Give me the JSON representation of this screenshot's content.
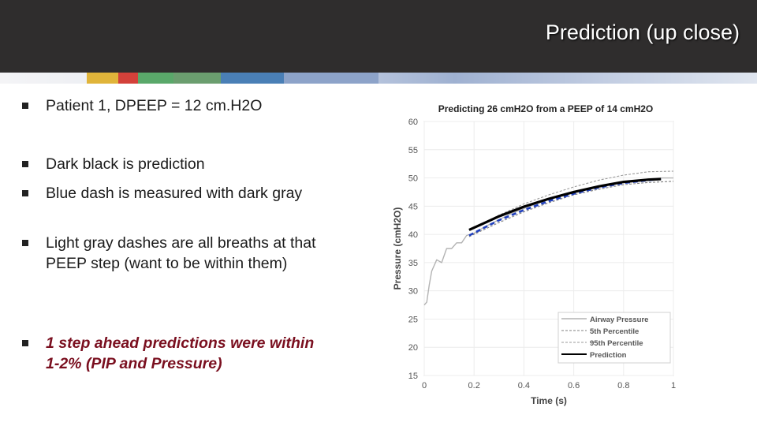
{
  "slide": {
    "title": "Prediction (up close)",
    "bullets": [
      {
        "text": "Patient 1, DPEEP = 12 cm.H2O",
        "emphasis": false
      },
      {
        "text": "Dark black is prediction",
        "emphasis": false
      },
      {
        "text": "Blue dash is measured with dark gray",
        "emphasis": false
      },
      {
        "text": "Light gray dashes are all breaths at that PEEP step (want to be within them)",
        "emphasis": false
      },
      {
        "text": "1 step ahead predictions were within 1-2% (PIP and Pressure)",
        "emphasis": true
      }
    ]
  },
  "chart_data": {
    "type": "line",
    "title": "Predicting 26 cmH2O from a PEEP of 14 cmH2O",
    "xlabel": "Time (s)",
    "ylabel": "Pressure (cmH2O)",
    "xlim": [
      0,
      1
    ],
    "ylim": [
      15,
      60
    ],
    "xticks": [
      "0",
      "0.2",
      "0.4",
      "0.6",
      "0.8",
      "1"
    ],
    "yticks": [
      "15",
      "20",
      "25",
      "30",
      "35",
      "40",
      "45",
      "50",
      "55",
      "60"
    ],
    "grid": true,
    "legend_position": "bottom-right",
    "legend": [
      "Airway Pressure",
      "5th Percentile",
      "95th Percentile",
      "Prediction"
    ],
    "colors": {
      "airway": "#b3b3b3",
      "p5": "#7f7f7f",
      "p95": "#9a9a9a",
      "prediction": "#000000",
      "measured": "#1f3fbf"
    },
    "series": [
      {
        "name": "Airway Pressure",
        "x": [
          0,
          0.01,
          0.02,
          0.03,
          0.05,
          0.07,
          0.09,
          0.11,
          0.13,
          0.15,
          0.17,
          0.2,
          0.25,
          0.3,
          0.35,
          0.4,
          0.5,
          0.6,
          0.7,
          0.8,
          0.9,
          0.95,
          1.0
        ],
        "y": [
          27.5,
          28,
          31,
          33.5,
          35.5,
          35,
          37.5,
          37.5,
          38.5,
          38.5,
          39.8,
          40.2,
          41.5,
          42.6,
          43.7,
          44.6,
          46.2,
          47.5,
          48.5,
          49.3,
          49.8,
          50,
          50
        ]
      },
      {
        "name": "5th Percentile",
        "x": [
          0.18,
          0.3,
          0.4,
          0.5,
          0.6,
          0.7,
          0.8,
          0.9,
          1.0
        ],
        "y": [
          39.6,
          42.1,
          44.0,
          45.6,
          47.0,
          48.0,
          48.8,
          49.2,
          49.4
        ]
      },
      {
        "name": "95th Percentile",
        "x": [
          0.18,
          0.3,
          0.4,
          0.5,
          0.6,
          0.7,
          0.8,
          0.9,
          1.0
        ],
        "y": [
          40.8,
          43.4,
          45.4,
          47.0,
          48.4,
          49.6,
          50.5,
          51.1,
          51.2
        ]
      },
      {
        "name": "Prediction",
        "x": [
          0.18,
          0.25,
          0.3,
          0.4,
          0.5,
          0.6,
          0.7,
          0.8,
          0.9,
          0.95
        ],
        "y": [
          40.8,
          42.2,
          43.2,
          44.9,
          46.3,
          47.5,
          48.5,
          49.3,
          49.7,
          49.8
        ]
      },
      {
        "name": "",
        "x": [
          0.18,
          0.25,
          0.3,
          0.4,
          0.5,
          0.6,
          0.7,
          0.8,
          0.9,
          0.95
        ],
        "y": [
          39.8,
          41.4,
          42.5,
          44.3,
          45.9,
          47.2,
          48.3,
          49.1,
          49.6,
          49.8
        ]
      }
    ]
  }
}
